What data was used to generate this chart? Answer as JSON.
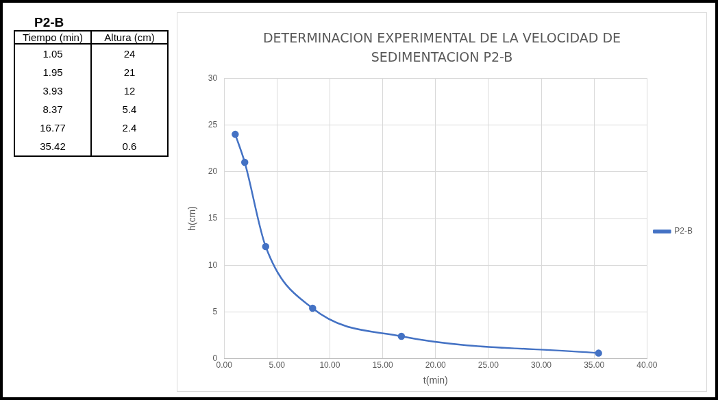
{
  "chart_data": [
    {
      "type": "other",
      "title": "P2-B",
      "annotations": [
        "Tiempo (min)",
        "Altura (cm)",
        "1.05",
        "24",
        "1.95",
        "21",
        "3.93",
        "12",
        "8.37",
        "5.4",
        "16.77",
        "2.4",
        "35.42",
        "0.6"
      ]
    },
    {
      "type": "line",
      "title": "DETERMINACION EXPERIMENTAL DE LA VELOCIDAD DE SEDIMENTACION P2-B",
      "xlabel": "t(min)",
      "ylabel": "h(cm)",
      "x": [
        1.05,
        1.95,
        3.93,
        8.37,
        16.77,
        35.42
      ],
      "series": [
        {
          "name": "P2-B",
          "color": "#4472c4",
          "values": [
            24,
            21,
            12,
            5.4,
            2.4,
            0.6
          ]
        }
      ],
      "xlim": [
        0,
        40
      ],
      "xticks": [
        {
          "value": 0,
          "label": "0.00"
        },
        {
          "value": 5,
          "label": "5.00"
        },
        {
          "value": 10,
          "label": "10.00"
        },
        {
          "value": 15,
          "label": "15.00"
        },
        {
          "value": 20,
          "label": "20.00"
        },
        {
          "value": 25,
          "label": "25.00"
        },
        {
          "value": 30,
          "label": "30.00"
        },
        {
          "value": 35,
          "label": "35.00"
        },
        {
          "value": 40,
          "label": "40.00"
        }
      ],
      "ylim": [
        0,
        30
      ],
      "yticks": [
        0,
        5,
        10,
        15,
        20,
        25,
        30
      ],
      "grid": true,
      "legend": "right",
      "marker": "circle",
      "line_style": "solid"
    }
  ]
}
